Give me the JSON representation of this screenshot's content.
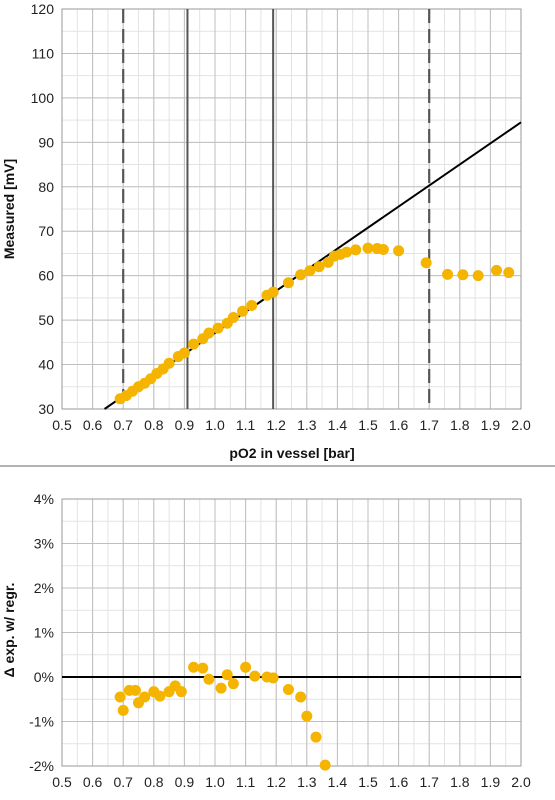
{
  "colors": {
    "points": "#F4B400",
    "regression_line": "#000000",
    "limit_lines": "#555555",
    "grid": "#BFBFBF"
  },
  "chart_data": [
    {
      "type": "scatter",
      "title": "",
      "xlabel": "pO2 in vessel [bar]",
      "ylabel": "Measured [mV]",
      "xlim": [
        0.5,
        2.0
      ],
      "ylim": [
        30,
        120
      ],
      "x_ticks": [
        "0.5",
        "0.6",
        "0.7",
        "0.8",
        "0.9",
        "1.0",
        "1.1",
        "1.2",
        "1.3",
        "1.4",
        "1.5",
        "1.6",
        "1.7",
        "1.8",
        "1.9",
        "2.0"
      ],
      "y_ticks": [
        "30",
        "40",
        "50",
        "60",
        "70",
        "80",
        "90",
        "100",
        "110",
        "120"
      ],
      "grid": true,
      "series": [
        {
          "type": "scatter",
          "points": [
            [
              0.69,
              32.3
            ],
            [
              0.71,
              33.0
            ],
            [
              0.73,
              34.0
            ],
            [
              0.75,
              35.0
            ],
            [
              0.77,
              35.8
            ],
            [
              0.79,
              36.8
            ],
            [
              0.81,
              38.0
            ],
            [
              0.83,
              39.0
            ],
            [
              0.85,
              40.3
            ],
            [
              0.88,
              41.8
            ],
            [
              0.9,
              42.6
            ],
            [
              0.93,
              44.6
            ],
            [
              0.96,
              45.8
            ],
            [
              0.98,
              47.1
            ],
            [
              1.01,
              48.2
            ],
            [
              1.04,
              49.3
            ],
            [
              1.06,
              50.6
            ],
            [
              1.09,
              52.0
            ],
            [
              1.12,
              53.3
            ],
            [
              1.17,
              55.6
            ],
            [
              1.19,
              56.3
            ],
            [
              1.24,
              58.4
            ],
            [
              1.28,
              60.2
            ],
            [
              1.31,
              61.1
            ],
            [
              1.34,
              62.0
            ],
            [
              1.37,
              63.0
            ],
            [
              1.39,
              64.4
            ],
            [
              1.41,
              64.8
            ],
            [
              1.43,
              65.3
            ],
            [
              1.46,
              65.8
            ],
            [
              1.5,
              66.2
            ],
            [
              1.53,
              66.1
            ],
            [
              1.55,
              65.9
            ],
            [
              1.6,
              65.6
            ],
            [
              1.69,
              62.9
            ],
            [
              1.76,
              60.3
            ],
            [
              1.81,
              60.2
            ],
            [
              1.86,
              60.0
            ],
            [
              1.92,
              61.2
            ],
            [
              1.96,
              60.7
            ]
          ]
        },
        {
          "type": "line",
          "points": [
            [
              0.639,
              30
            ],
            [
              2.0,
              94.5
            ]
          ]
        }
      ],
      "reference_lines": {
        "dashed_x": [
          0.7,
          1.7
        ],
        "solid_x": [
          0.91,
          1.19
        ]
      }
    },
    {
      "type": "scatter",
      "title": "",
      "xlabel": "",
      "ylabel": "Δ exp. w/ regr.",
      "xlim": [
        0.5,
        2.0
      ],
      "ylim": [
        -2,
        4
      ],
      "x_ticks": [
        "0.5",
        "0.6",
        "0.7",
        "0.8",
        "0.9",
        "1.0",
        "1.1",
        "1.2",
        "1.3",
        "1.4",
        "1.5",
        "1.6",
        "1.7",
        "1.8",
        "1.9",
        "2.0"
      ],
      "y_ticks": [
        "-2%",
        "-1%",
        "0%",
        "1%",
        "2%",
        "3%",
        "4%"
      ],
      "grid": true,
      "series": [
        {
          "type": "scatter",
          "points": [
            [
              0.69,
              -0.45
            ],
            [
              0.7,
              -0.75
            ],
            [
              0.72,
              -0.3
            ],
            [
              0.74,
              -0.3
            ],
            [
              0.75,
              -0.58
            ],
            [
              0.77,
              -0.45
            ],
            [
              0.8,
              -0.33
            ],
            [
              0.82,
              -0.43
            ],
            [
              0.85,
              -0.33
            ],
            [
              0.87,
              -0.2
            ],
            [
              0.89,
              -0.33
            ],
            [
              0.93,
              0.22
            ],
            [
              0.96,
              0.2
            ],
            [
              0.98,
              -0.05
            ],
            [
              1.02,
              -0.25
            ],
            [
              1.04,
              0.05
            ],
            [
              1.06,
              -0.15
            ],
            [
              1.1,
              0.22
            ],
            [
              1.13,
              0.02
            ],
            [
              1.17,
              0.0
            ],
            [
              1.19,
              -0.02
            ],
            [
              1.24,
              -0.28
            ],
            [
              1.28,
              -0.45
            ],
            [
              1.3,
              -0.88
            ],
            [
              1.33,
              -1.35
            ],
            [
              1.36,
              -1.98
            ]
          ]
        }
      ],
      "reference_lines": {
        "solid_y": [
          0
        ]
      }
    }
  ]
}
